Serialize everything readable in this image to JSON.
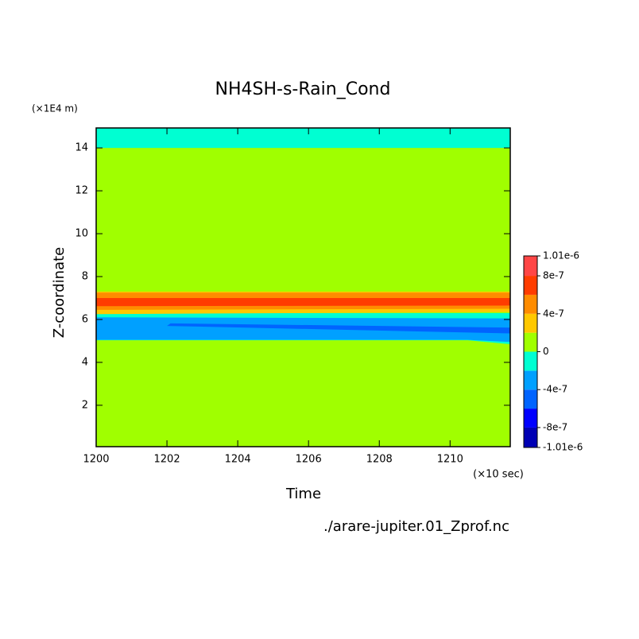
{
  "chart_data": {
    "type": "contour",
    "title": "NH4SH-s-Rain_Cond",
    "x_label": "Time",
    "x_unit": "(×10 sec)",
    "y_label": "Z-coordinate",
    "y_unit": "(×1E4 m)",
    "footnote": "./arare-jupiter.01_Zprof.nc",
    "xlim": [
      1200,
      1211.7
    ],
    "xticks": [
      1200,
      1202,
      1204,
      1206,
      1208,
      1210
    ],
    "ylim": [
      0.07,
      14.93
    ],
    "yticks": [
      2,
      4,
      6,
      8,
      10,
      12,
      14
    ],
    "levels": [
      -1.01e-06,
      -8e-07,
      -6e-07,
      -4e-07,
      -2e-07,
      0,
      2e-07,
      4e-07,
      6e-07,
      8e-07,
      1.01e-06
    ],
    "colors": [
      "#0000b4",
      "#0000ff",
      "#0064ff",
      "#00a0ff",
      "#00ffd2",
      "#a0ff00",
      "#ffc800",
      "#ff8c00",
      "#ff3c00",
      "#ff4646"
    ],
    "colorbar_ticks": [
      {
        "value": 1.01e-06,
        "label": "1.01e-6"
      },
      {
        "value": 8e-07,
        "label": "8e-7"
      },
      {
        "value": 4e-07,
        "label": "4e-7"
      },
      0,
      {
        "value": -4e-07,
        "label": "-4e-7"
      },
      {
        "value": -8e-07,
        "label": "-8e-7"
      },
      {
        "value": -1.01e-06,
        "label": "-1.01e-6"
      }
    ],
    "regions": [
      {
        "level": 5,
        "x": [
          1200,
          1211.7,
          1211.7,
          1200
        ],
        "z": [
          0.07,
          0.07,
          14.93,
          14.93
        ]
      },
      {
        "level": 4,
        "x": [
          1200,
          1211.7,
          1211.7,
          1200
        ],
        "z": [
          14,
          14,
          14.93,
          14.93
        ]
      },
      {
        "level": 4,
        "x": [
          1200,
          1210.5,
          1211.7,
          1211.7,
          1200
        ],
        "z": [
          5.03,
          5.03,
          4.85,
          6.3,
          6.3
        ]
      },
      {
        "level": 3,
        "x": [
          1200,
          1210.5,
          1211.7,
          1211.7,
          1200
        ],
        "z": [
          5.05,
          5.05,
          4.95,
          6.05,
          6.1
        ]
      },
      {
        "level": 2,
        "x": [
          1202,
          1211.7,
          1211.7,
          1202.1
        ],
        "z": [
          5.7,
          5.35,
          5.62,
          5.82
        ]
      },
      {
        "level": 6,
        "x": [
          1200,
          1211.7,
          1211.7,
          1200
        ],
        "z": [
          6.25,
          6.35,
          7.3,
          7.3
        ]
      },
      {
        "level": 7,
        "x": [
          1200,
          1211.7,
          1211.7,
          1200
        ],
        "z": [
          6.45,
          6.5,
          7.25,
          7.25
        ]
      },
      {
        "level": 8,
        "x": [
          1200,
          1211.7,
          1211.7,
          1200
        ],
        "z": [
          6.62,
          6.65,
          7.0,
          7.0
        ]
      }
    ]
  }
}
